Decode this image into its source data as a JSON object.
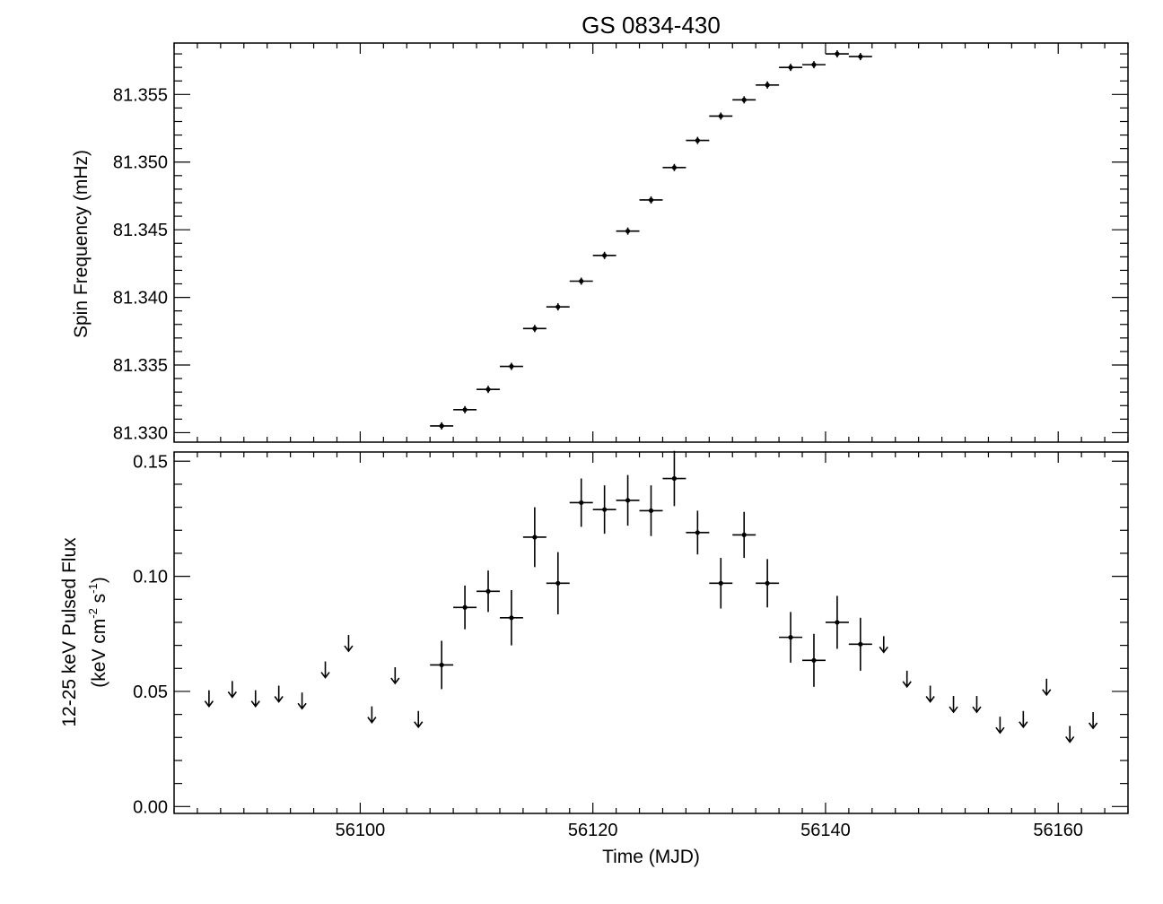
{
  "title": "GS 0834-430",
  "chart_data": [
    {
      "type": "scatter",
      "panel": "top",
      "ylabel": "Spin Frequency (mHz)",
      "xlim": [
        56084,
        56166
      ],
      "ylim": [
        81.3293,
        81.3588
      ],
      "yticks": [
        "81.330",
        "81.335",
        "81.340",
        "81.345",
        "81.350",
        "81.355"
      ],
      "ytick_values": [
        81.33,
        81.335,
        81.34,
        81.345,
        81.35,
        81.355
      ],
      "x_half_width": 1,
      "series": [
        {
          "x": [
            56107,
            56109,
            56111,
            56113,
            56115,
            56117,
            56119,
            56121,
            56123,
            56125,
            56127,
            56129,
            56131,
            56133,
            56135,
            56137,
            56139,
            56141,
            56143
          ],
          "y": [
            81.3305,
            81.3317,
            81.3332,
            81.3349,
            81.3377,
            81.3393,
            81.3412,
            81.3431,
            81.3449,
            81.3472,
            81.3496,
            81.3516,
            81.3534,
            81.3546,
            81.3557,
            81.357,
            81.3572,
            81.358,
            81.3578
          ]
        }
      ]
    },
    {
      "type": "scatter",
      "panel": "bottom",
      "xlabel": "Time (MJD)",
      "ylabel_line1": "12-25 keV Pulsed Flux",
      "ylabel_line2_parts": [
        "(keV cm",
        "-2",
        " s",
        "-1",
        ")"
      ],
      "xlim": [
        56084,
        56166
      ],
      "ylim": [
        -0.003,
        0.154
      ],
      "xticks": [
        "56100",
        "56120",
        "56140",
        "56160"
      ],
      "xtick_values": [
        56100,
        56120,
        56140,
        56160
      ],
      "yticks": [
        "0.00",
        "0.05",
        "0.10",
        "0.15"
      ],
      "ytick_values": [
        0.0,
        0.05,
        0.1,
        0.15
      ],
      "x_half_width": 1,
      "series": [
        {
          "name": "detections",
          "x": [
            56107,
            56109,
            56111,
            56113,
            56115,
            56117,
            56119,
            56121,
            56123,
            56125,
            56127,
            56129,
            56131,
            56133,
            56135,
            56137,
            56139,
            56141,
            56143
          ],
          "y": [
            0.0615,
            0.0865,
            0.0935,
            0.082,
            0.117,
            0.097,
            0.132,
            0.129,
            0.133,
            0.1285,
            0.1425,
            0.119,
            0.097,
            0.118,
            0.097,
            0.0735,
            0.0635,
            0.08,
            0.0705
          ],
          "yerr": [
            0.0105,
            0.0095,
            0.009,
            0.012,
            0.013,
            0.0135,
            0.0105,
            0.0105,
            0.011,
            0.011,
            0.012,
            0.0095,
            0.011,
            0.01,
            0.0105,
            0.011,
            0.0115,
            0.0115,
            0.0115
          ]
        },
        {
          "name": "upper limits",
          "x": [
            56087,
            56089,
            56091,
            56093,
            56095,
            56097,
            56099,
            56101,
            56103,
            56105,
            56145,
            56147,
            56149,
            56151,
            56153,
            56155,
            56157,
            56159,
            56161,
            56163
          ],
          "y": [
            0.047,
            0.051,
            0.047,
            0.049,
            0.046,
            0.0595,
            0.071,
            0.04,
            0.057,
            0.038,
            0.0705,
            0.0555,
            0.049,
            0.0445,
            0.0445,
            0.0355,
            0.038,
            0.052,
            0.0315,
            0.0375
          ]
        }
      ]
    }
  ]
}
